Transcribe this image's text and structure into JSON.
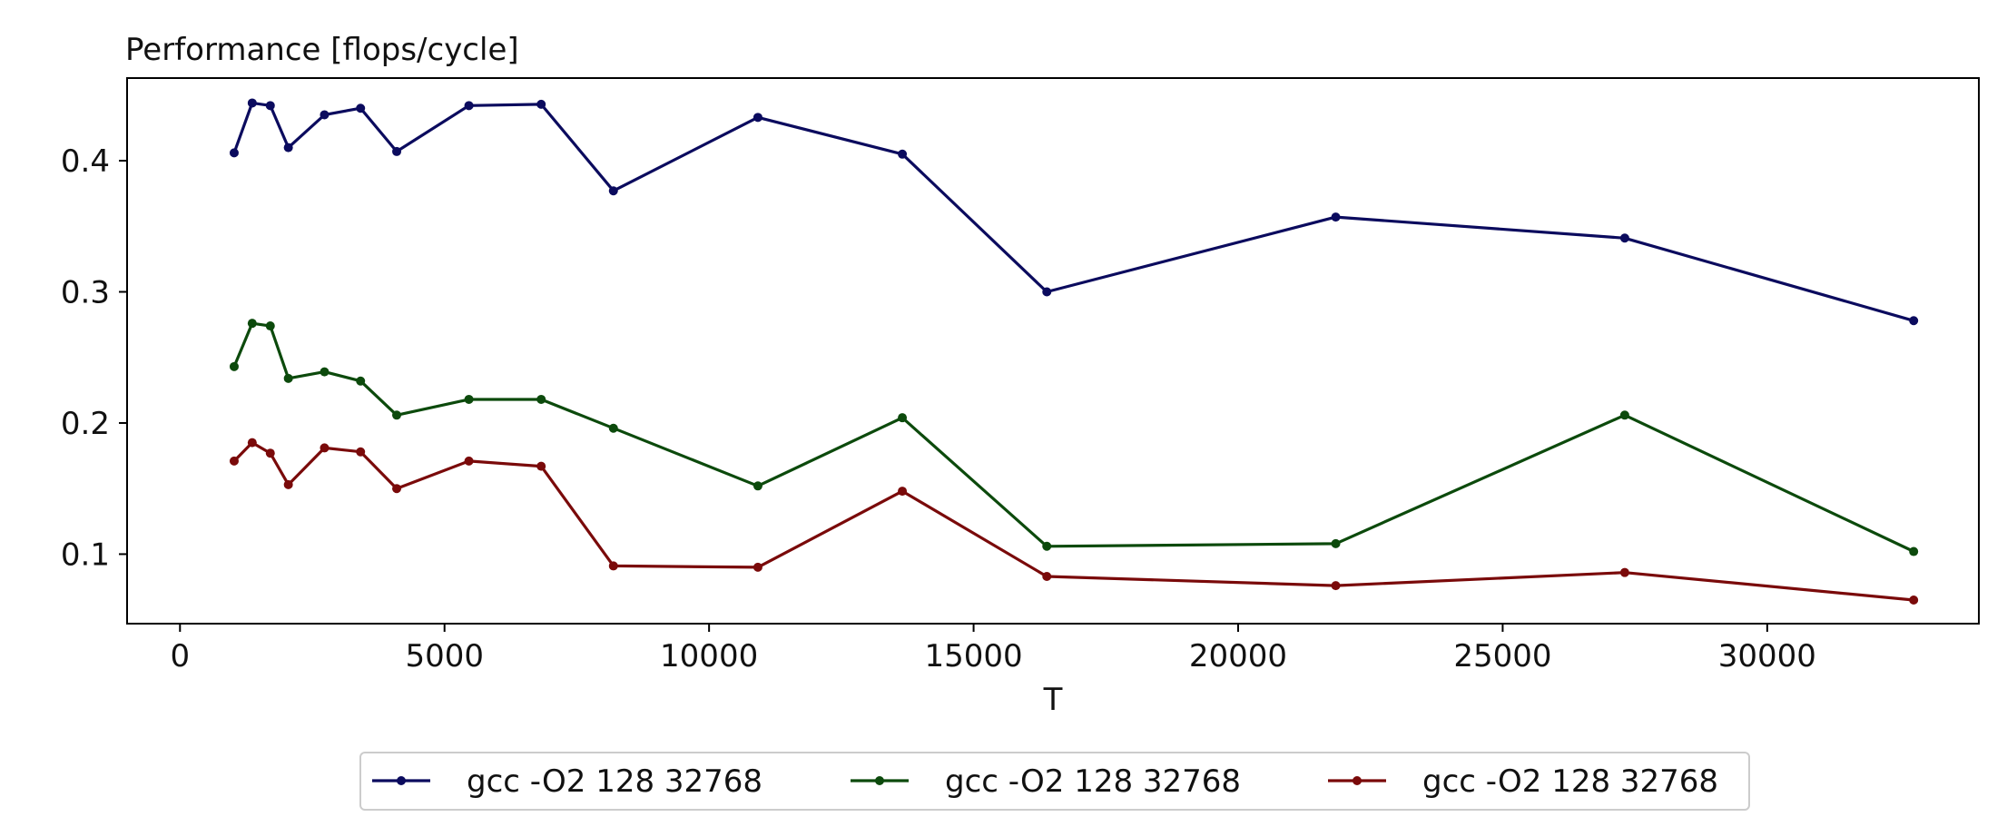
{
  "chart_data": {
    "type": "line",
    "title": "Performance [flops/cycle]",
    "xlabel": "T",
    "ylabel": "",
    "xlim": [
      -1000,
      34000
    ],
    "ylim": [
      0.047,
      0.463
    ],
    "xticks": [
      0,
      5000,
      10000,
      15000,
      20000,
      25000,
      30000
    ],
    "xtick_labels": [
      "0",
      "5000",
      "10000",
      "15000",
      "20000",
      "25000",
      "30000"
    ],
    "yticks": [
      0.1,
      0.2,
      0.3,
      0.4
    ],
    "ytick_labels": [
      "0.1",
      "0.2",
      "0.3",
      "0.4"
    ],
    "grid": false,
    "legend_placement": "bottom-center",
    "x": [
      1024,
      1365,
      1707,
      2048,
      2731,
      3413,
      4096,
      5461,
      6827,
      8192,
      10923,
      13653,
      16384,
      21845,
      27307,
      32768
    ],
    "series": [
      {
        "name": "gcc -O2 128 32768",
        "color": "#0b0b5e",
        "values": [
          0.406,
          0.444,
          0.442,
          0.41,
          0.435,
          0.44,
          0.407,
          0.442,
          0.443,
          0.377,
          0.433,
          0.405,
          0.3,
          0.357,
          0.341,
          0.278
        ]
      },
      {
        "name": "gcc -O2 128 32768",
        "color": "#0c4a0c",
        "values": [
          0.243,
          0.276,
          0.274,
          0.234,
          0.239,
          0.232,
          0.206,
          0.218,
          0.218,
          0.196,
          0.152,
          0.204,
          0.106,
          0.108,
          0.206,
          0.102
        ]
      },
      {
        "name": "gcc -O2 128 32768",
        "color": "#7a0a0a",
        "values": [
          0.171,
          0.185,
          0.177,
          0.153,
          0.181,
          0.178,
          0.15,
          0.171,
          0.167,
          0.091,
          0.09,
          0.148,
          0.083,
          0.076,
          0.086,
          0.065
        ]
      }
    ]
  }
}
